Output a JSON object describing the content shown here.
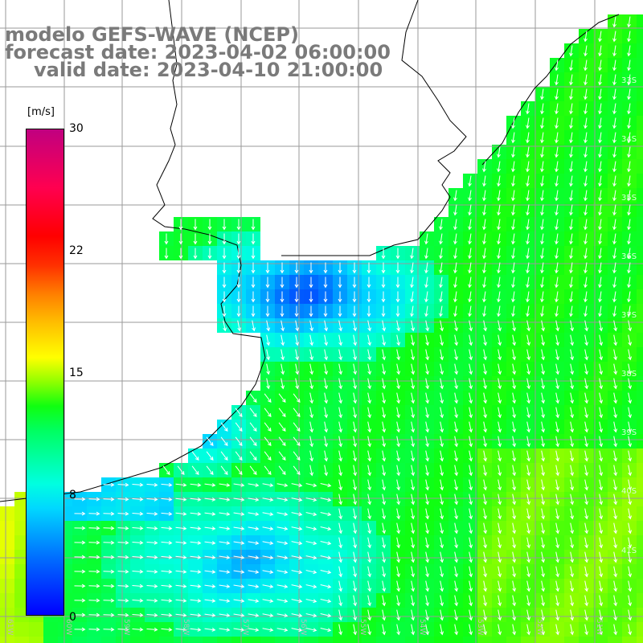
{
  "title": {
    "line1": "modelo GEFS-WAVE (NCEP)",
    "line2": "forecast date: 2023-04-02 06:00:00",
    "line3": "valid date: 2023-04-10 21:00:00"
  },
  "colorbar": {
    "unit": "[m/s]",
    "ticks": [
      "30",
      "22",
      "15",
      "8",
      "0"
    ],
    "colors": [
      "#0000ff",
      "#0070ff",
      "#00d8ff",
      "#00ffe0",
      "#00ff60",
      "#10ff10",
      "#90ff00",
      "#ffff00",
      "#ffc000",
      "#ff8000",
      "#ff3000",
      "#ff0000",
      "#ff0050",
      "#c00080"
    ]
  },
  "map": {
    "lon_labels": [
      "61W",
      "60W",
      "59W",
      "58W",
      "57W",
      "56W",
      "55W",
      "54W",
      "53W",
      "52W",
      "51W"
    ],
    "lat_labels": [
      "33S",
      "34S",
      "35S",
      "36S",
      "37S",
      "38S",
      "39S",
      "40S",
      "41S"
    ],
    "land_color": "#ffffff",
    "grid_color": "#9a9a9a",
    "arrow_color": "#ffffff"
  }
}
